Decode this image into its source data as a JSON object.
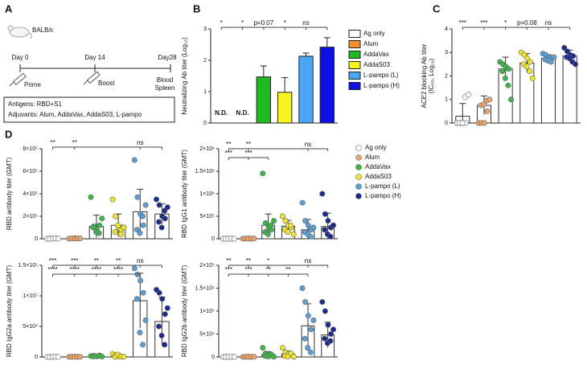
{
  "diagram": {
    "label": "A",
    "strain": "BALB/c",
    "timeline": [
      {
        "day": "Day 0",
        "event": [
          "Prime"
        ]
      },
      {
        "day": "Day 14",
        "event": [
          "Boost"
        ]
      },
      {
        "day": "Day28",
        "event": [
          "Blood",
          "Spleen"
        ]
      }
    ],
    "box": [
      "Antigens: RBD+S1",
      "Adjuvants: Alum, AddaVax, AddaS03, L-pampo"
    ]
  },
  "legend_d": [
    {
      "name": "Ag only",
      "color": "#ffffff"
    },
    {
      "name": "Alum",
      "color": "#eba56c"
    },
    {
      "name": "AddaVax",
      "color": "#3db54b"
    },
    {
      "name": "AddaS03",
      "color": "#f2e62c"
    },
    {
      "name": "L-pampo (L)",
      "color": "#5b9fd8"
    },
    {
      "name": "L-pampo (H)",
      "color": "#1b2a8c"
    }
  ],
  "chart_data": [
    {
      "panel": "B",
      "type": "bar",
      "y_label": [
        "Neutralizing Ab titer (Log₁₀)"
      ],
      "categories": [
        "Ag only",
        "Alum",
        "AddaVax",
        "AddaS03",
        "L-pampo (L)",
        "L-pampo (H)"
      ],
      "colors": [
        "#ffffff",
        "#f5922f",
        "#22b822",
        "#f5f51a",
        "#4da6f5",
        "#0c10e0"
      ],
      "values": [
        null,
        null,
        1.47,
        0.98,
        2.13,
        2.42
      ],
      "value_labels": [
        "N.D.",
        "N.D.",
        null,
        null,
        null,
        null
      ],
      "errors": [
        null,
        null,
        0.35,
        0.47,
        0.1,
        0.3
      ],
      "ylim": [
        0,
        3
      ],
      "yticks": [
        0,
        1,
        2,
        3
      ],
      "annotations": [
        [
          "*",
          "*",
          "p=0.07",
          "*",
          "ns"
        ]
      ]
    },
    {
      "panel": "C",
      "type": "bar_scatter",
      "y_label": [
        "ACE2 blocking Ab titer",
        "(IC₅₀, Log₁₀)"
      ],
      "ylim": [
        0,
        4
      ],
      "yticks": [
        0,
        1,
        2,
        3,
        4
      ],
      "groups": [
        {
          "color": "#ffffff",
          "values": [
            0,
            0,
            0,
            0,
            0,
            0,
            1.1,
            1.2
          ],
          "mean": 0.29,
          "error": 0.54
        },
        {
          "color": "#eba56c",
          "values": [
            0,
            0,
            0,
            0.5,
            0.75,
            0.8,
            0.95,
            1.0
          ],
          "mean": 0.75,
          "error": 0.4
        },
        {
          "color": "#3db54b",
          "values": [
            2.6,
            2.5,
            2.4,
            2.3,
            2.2,
            1.9,
            1.6,
            1.0
          ],
          "mean": 2.3,
          "error": 0.5
        },
        {
          "color": "#f2e62c",
          "values": [
            3.0,
            2.9,
            2.75,
            2.6,
            2.5,
            2.4,
            2.2,
            1.9
          ],
          "mean": 2.55,
          "error": 0.4
        },
        {
          "color": "#5b9fd8",
          "values": [
            2.95,
            2.9,
            2.8,
            2.75,
            2.7,
            2.65,
            2.6,
            2.8
          ],
          "mean": 2.75,
          "error": 0.15
        },
        {
          "color": "#1b2a8c",
          "values": [
            3.2,
            3.05,
            2.9,
            2.85,
            2.8,
            2.75,
            2.6,
            2.5
          ],
          "mean": 2.85,
          "error": 0.25
        }
      ],
      "annotations": [
        [
          "***",
          "***",
          "*",
          "p=0.08",
          "ns"
        ]
      ]
    },
    {
      "panel": "D",
      "type": "bar_scatter",
      "y_label": [
        "RBD antibody titer (GMT)"
      ],
      "ylim": [
        0,
        800000
      ],
      "yticks": [
        0,
        {
          "value": 200000,
          "label": "2×10⁵"
        },
        {
          "value": 400000,
          "label": "4×10⁵"
        },
        {
          "value": 600000,
          "label": "6×10⁵"
        },
        {
          "value": 800000,
          "label": "8×10⁵"
        }
      ],
      "groups": [
        {
          "color": "#ffffff",
          "values": [
            0,
            2000,
            1000,
            3000,
            0,
            1500,
            2500,
            500
          ],
          "mean": 1300,
          "error": 1100
        },
        {
          "color": "#eba56c",
          "values": [
            1000,
            3000,
            5000,
            2000,
            4000,
            1500,
            2500,
            3500
          ],
          "mean": 2800,
          "error": 1300
        },
        {
          "color": "#3db54b",
          "values": [
            370000,
            110000,
            80000,
            120000,
            100000,
            60000,
            50000,
            180000
          ],
          "mean": 110000,
          "error": 100000
        },
        {
          "color": "#f2e62c",
          "values": [
            350000,
            200000,
            100000,
            80000,
            60000,
            120000,
            40000,
            100000
          ],
          "mean": 120000,
          "error": 100000
        },
        {
          "color": "#5b9fd8",
          "values": [
            700000,
            370000,
            220000,
            120000,
            80000,
            50000,
            200000,
            300000
          ],
          "mean": 240000,
          "error": 200000
        },
        {
          "color": "#1b2a8c",
          "values": [
            350000,
            300000,
            200000,
            180000,
            150000,
            100000,
            250000,
            280000
          ],
          "mean": 220000,
          "error": 90000
        }
      ],
      "annotations": [
        [
          "**",
          "**",
          null,
          null,
          "ns"
        ]
      ]
    },
    {
      "type": "bar_scatter",
      "y_label": [
        "RBD IgG1 antibody titer (GMT)"
      ],
      "ylim": [
        0,
        2000000
      ],
      "yticks": [
        0,
        {
          "value": 500000,
          "label": "5×10⁵"
        },
        {
          "value": 1000000,
          "label": "1×10⁶"
        },
        {
          "value": 1500000,
          "label": "1.5×10⁶"
        },
        {
          "value": 2000000,
          "label": "2×10⁶"
        }
      ],
      "groups": [
        {
          "color": "#ffffff",
          "values": [
            0,
            2000,
            1000,
            3000,
            0,
            1500,
            2500,
            500
          ],
          "mean": 1300,
          "error": 1100
        },
        {
          "color": "#eba56c",
          "values": [
            2000,
            4000,
            6000,
            3000,
            5000,
            1000,
            2500,
            3500
          ],
          "mean": 3400,
          "error": 1600
        },
        {
          "color": "#3db54b",
          "values": [
            1450000,
            350000,
            250000,
            200000,
            150000,
            100000,
            300000,
            400000
          ],
          "mean": 300000,
          "error": 250000
        },
        {
          "color": "#f2e62c",
          "values": [
            500000,
            400000,
            300000,
            250000,
            200000,
            150000,
            300000,
            100000
          ],
          "mean": 280000,
          "error": 130000
        },
        {
          "color": "#5b9fd8",
          "values": [
            800000,
            400000,
            300000,
            200000,
            150000,
            100000,
            50000,
            250000
          ],
          "mean": 200000,
          "error": 230000
        },
        {
          "color": "#1b2a8c",
          "values": [
            1000000,
            550000,
            400000,
            250000,
            200000,
            100000,
            50000,
            300000
          ],
          "mean": 270000,
          "error": 300000
        }
      ],
      "annotations": [
        [
          "**",
          "**",
          null,
          null,
          "ns"
        ],
        [
          "***",
          "***"
        ]
      ]
    },
    {
      "type": "bar_scatter",
      "y_label": [
        "RBD IgG2a antibody titer (GMT)"
      ],
      "ylim": [
        0,
        150000
      ],
      "yticks": [
        0,
        {
          "value": 50000,
          "label": "5×10⁴"
        },
        {
          "value": 100000,
          "label": "1×10⁵"
        },
        {
          "value": 150000,
          "label": "1.5×10⁵"
        }
      ],
      "groups": [
        {
          "color": "#ffffff",
          "values": [
            0,
            200,
            100,
            300,
            0,
            150,
            250,
            50
          ],
          "mean": 130,
          "error": 110
        },
        {
          "color": "#eba56c",
          "values": [
            100,
            300,
            500,
            200,
            400,
            150,
            250,
            350
          ],
          "mean": 280,
          "error": 130
        },
        {
          "color": "#3db54b",
          "values": [
            1500,
            2000,
            1000,
            2500,
            800,
            1200,
            1800,
            600
          ],
          "mean": 1400,
          "error": 650
        },
        {
          "color": "#f2e62c",
          "values": [
            5000,
            3000,
            1000,
            500,
            200,
            4000,
            800,
            300
          ],
          "mean": 1800,
          "error": 1800
        },
        {
          "color": "#5b9fd8",
          "values": [
            145000,
            135000,
            125000,
            105000,
            95000,
            40000,
            20000,
            60000
          ],
          "mean": 92000,
          "error": 45000
        },
        {
          "color": "#1b2a8c",
          "values": [
            110000,
            105000,
            95000,
            70000,
            50000,
            35000,
            20000,
            80000
          ],
          "mean": 58000,
          "error": 40000
        }
      ],
      "annotations": [
        [
          "***",
          "***",
          "**",
          "**",
          "ns"
        ],
        [
          "****",
          "****",
          "****",
          "****"
        ]
      ]
    },
    {
      "type": "bar_scatter",
      "y_label": [
        "RBD IgG2b antibody titer (GMT)"
      ],
      "ylim": [
        0,
        200000
      ],
      "yticks": [
        0,
        {
          "value": 50000,
          "label": "5×10⁴"
        },
        {
          "value": 100000,
          "label": "1×10⁵"
        },
        {
          "value": 150000,
          "label": "1.5×10⁵"
        },
        {
          "value": 200000,
          "label": "2×10⁵"
        }
      ],
      "groups": [
        {
          "color": "#ffffff",
          "values": [
            0,
            200,
            100,
            300,
            0,
            150,
            250,
            50
          ],
          "mean": 130,
          "error": 110
        },
        {
          "color": "#eba56c",
          "values": [
            100,
            300,
            500,
            200,
            400,
            150,
            250,
            350
          ],
          "mean": 280,
          "error": 130
        },
        {
          "color": "#3db54b",
          "values": [
            20000,
            8000,
            5000,
            3000,
            2000,
            1000,
            6000,
            500
          ],
          "mean": 5500,
          "error": 6000
        },
        {
          "color": "#f2e62c",
          "values": [
            20000,
            10000,
            6000,
            4000,
            2000,
            1000,
            8000,
            500
          ],
          "mean": 6500,
          "error": 6300
        },
        {
          "color": "#5b9fd8",
          "values": [
            150000,
            120000,
            90000,
            60000,
            40000,
            20000,
            10000,
            80000
          ],
          "mean": 68000,
          "error": 48000
        },
        {
          "color": "#1b2a8c",
          "values": [
            120000,
            100000,
            70000,
            50000,
            40000,
            30000,
            35000,
            60000
          ],
          "mean": 48000,
          "error": 28000
        }
      ],
      "annotations": [
        [
          "**",
          "**",
          "*",
          null,
          "ns"
        ],
        [
          "***",
          "***",
          "**",
          "**"
        ]
      ]
    }
  ]
}
